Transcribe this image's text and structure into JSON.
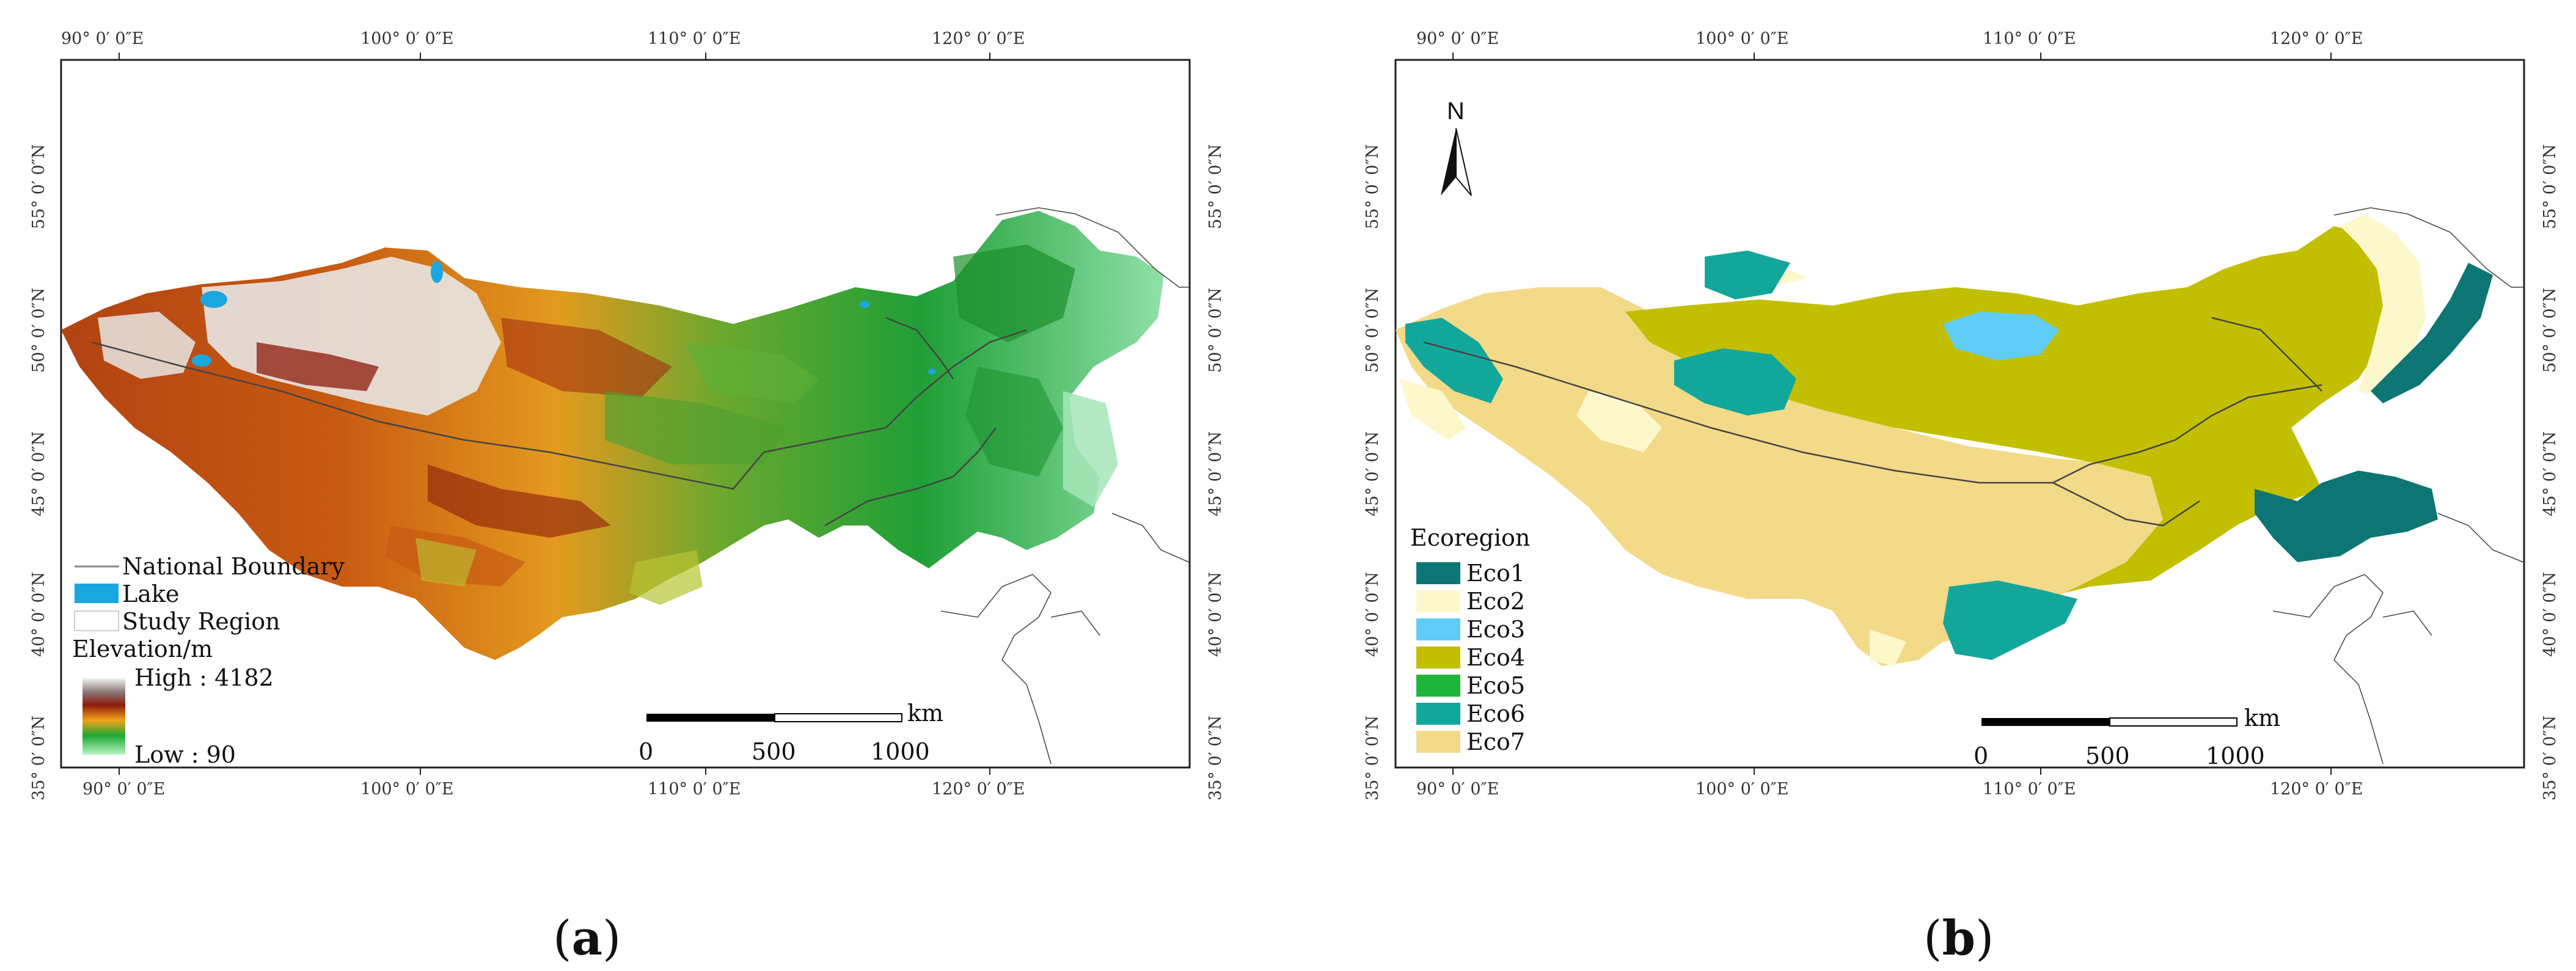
{
  "top_lon_labels": [
    "90° 0′ 0″E",
    "100° 0′ 0″E",
    "110° 0′ 0″E",
    "120° 0′ 0″E"
  ],
  "bottom_lon_labels": [
    "90° 0′ 0″E",
    "100° 0′ 0″E",
    "110° 0′ 0″E",
    "120° 0′ 0″E"
  ],
  "lat_labels": [
    "35° 0′ 0″N",
    "40° 0′ 0″N",
    "45° 0′ 0″N",
    "50° 0′ 0″N",
    "55° 0′ 0″N"
  ],
  "panel_a": {
    "caption_open": "(",
    "caption_letter": "a",
    "caption_close": ")",
    "legend": {
      "national_boundary": "National Boundary",
      "lake": "Lake",
      "study_region": "Study Region",
      "elevation_title": "Elevation/m",
      "high": "High : 4182",
      "low": "Low : 90"
    },
    "scale_bar": {
      "unit": "km",
      "ticks": [
        "0",
        "500",
        "1000"
      ]
    },
    "colors": {
      "lake": "#1aa7e0",
      "elev_low": "#a8f0b8",
      "elev_mid1": "#1ea832",
      "elev_mid2": "#f2a31a",
      "elev_high1": "#8e1b0b",
      "elev_high2": "#e8e8e8"
    }
  },
  "panel_b": {
    "caption_open": "(",
    "caption_letter": "b",
    "caption_close": ")",
    "north": "N",
    "legend_title": "Ecoregion",
    "legend": [
      {
        "label": "Eco1",
        "color": "#0d7674"
      },
      {
        "label": "Eco2",
        "color": "#fdf8cc"
      },
      {
        "label": "Eco3",
        "color": "#5fcdf5"
      },
      {
        "label": "Eco4",
        "color": "#c2bf00"
      },
      {
        "label": "Eco5",
        "color": "#1fb53a"
      },
      {
        "label": "Eco6",
        "color": "#13a79b"
      },
      {
        "label": "Eco7",
        "color": "#f2da88"
      }
    ],
    "scale_bar": {
      "unit": "km",
      "ticks": [
        "0",
        "500",
        "1000"
      ]
    }
  }
}
